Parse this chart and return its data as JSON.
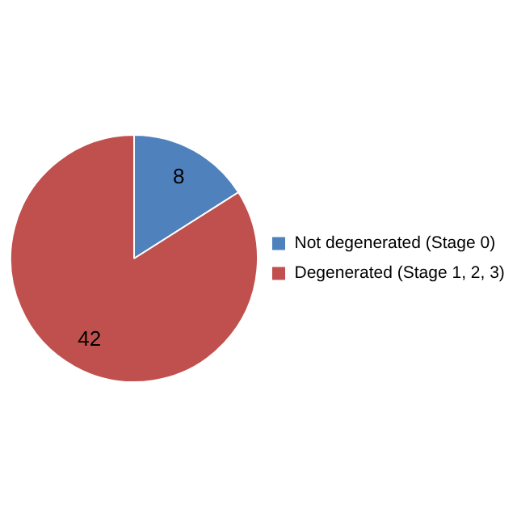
{
  "chart_data": {
    "type": "pie",
    "categories": [
      "Not degenerated (Stage 0)",
      "Degenerated (Stage 1, 2, 3)"
    ],
    "values": [
      8,
      42
    ],
    "colors": [
      "#4f81bd",
      "#c0504d"
    ],
    "data_labels": true,
    "legend": "right"
  }
}
